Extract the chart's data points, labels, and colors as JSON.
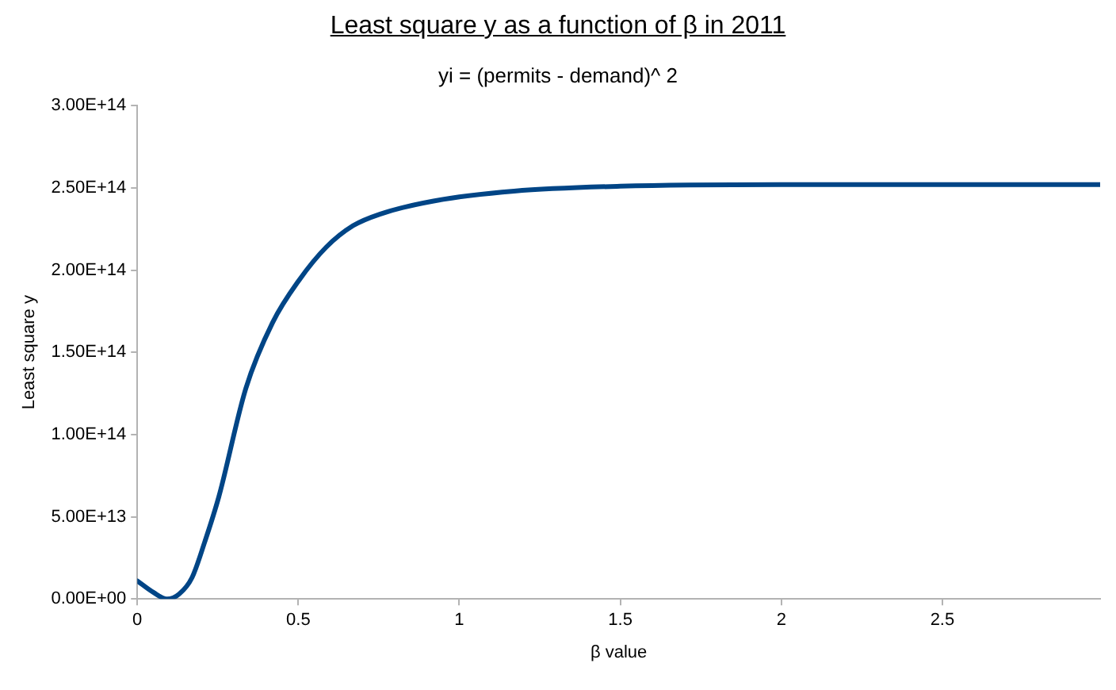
{
  "chart_data": {
    "type": "line",
    "title": "Least square y as a function of β in 2011",
    "subtitle": "yi = (permits - demand)^ 2",
    "xlabel": "β value",
    "ylabel": "Least square y",
    "xlim": [
      0,
      2.99
    ],
    "xticks": [
      0,
      0.5,
      1,
      1.5,
      2,
      2.5
    ],
    "ylim": [
      0,
      300000000000000
    ],
    "yticks": [
      {
        "value": 0,
        "label": "0.00E+00"
      },
      {
        "value": 50000000000000,
        "label": "5.00E+13"
      },
      {
        "value": 100000000000000,
        "label": "1.00E+14"
      },
      {
        "value": 150000000000000,
        "label": "1.50E+14"
      },
      {
        "value": 200000000000000,
        "label": "2.00E+14"
      },
      {
        "value": 250000000000000,
        "label": "2.50E+14"
      },
      {
        "value": 300000000000000,
        "label": "3.00E+14"
      }
    ],
    "grid": false,
    "legend": false,
    "marker": "none",
    "line_style": "solid",
    "series": [
      {
        "color": "#004586",
        "x": [
          0,
          0.05,
          0.092,
          0.13,
          0.17,
          0.21,
          0.253,
          0.337,
          0.42,
          0.503,
          0.587,
          0.67,
          0.753,
          0.92,
          1.17,
          1.5,
          2,
          2.99
        ],
        "values": [
          11000000000000,
          4000000000000,
          0,
          3000000000000,
          13000000000000,
          35000000000000,
          62000000000000,
          128000000000000,
          168000000000000,
          194000000000000,
          214000000000000,
          227000000000000,
          234000000000000,
          242000000000000,
          248000000000000,
          251000000000000,
          252000000000000,
          252000000000000
        ]
      }
    ]
  }
}
